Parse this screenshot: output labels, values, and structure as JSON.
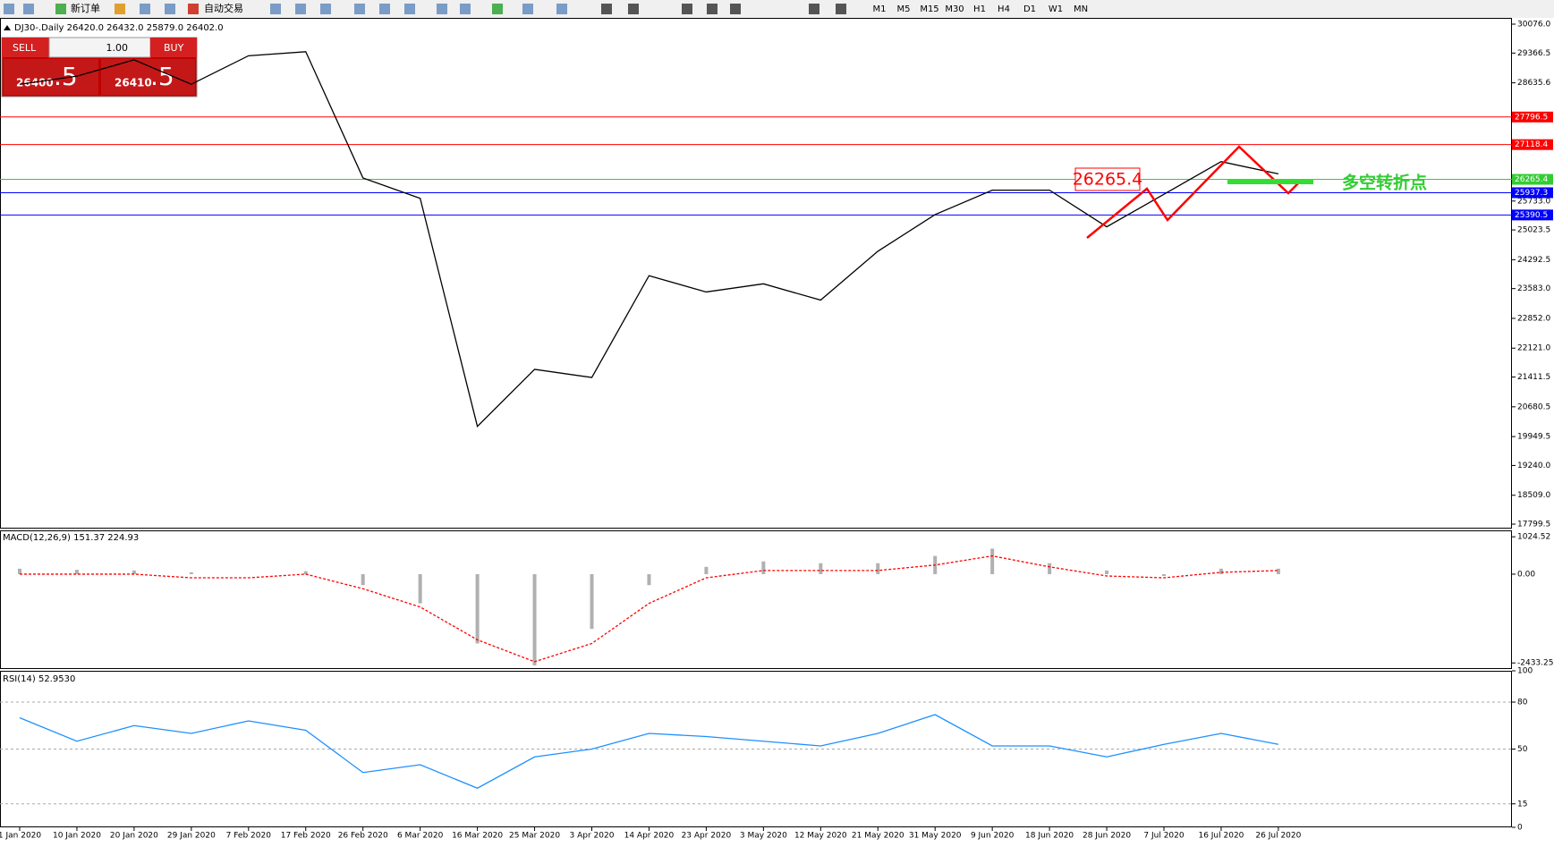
{
  "toolbar": {
    "new_order": "新订单",
    "auto_trading": "自动交易",
    "timeframes": [
      "M1",
      "M5",
      "M15",
      "M30",
      "H1",
      "H4",
      "D1",
      "W1",
      "MN"
    ]
  },
  "trade_panel": {
    "sell": "SELL",
    "buy": "BUY",
    "lots": "1.00",
    "sell_price": "26400",
    "sell_pips": ".5",
    "buy_price": "26410",
    "buy_pips": ".5"
  },
  "chart_data": [
    {
      "type": "line",
      "title": "DJ30-.Daily 26420.0 26432.0 25879.0 26402.0",
      "x": [
        "1 Jan 2020",
        "10 Jan 2020",
        "20 Jan 2020",
        "29 Jan 2020",
        "7 Feb 2020",
        "17 Feb 2020",
        "26 Feb 2020",
        "6 Mar 2020",
        "16 Mar 2020",
        "25 Mar 2020",
        "3 Apr 2020",
        "14 Apr 2020",
        "23 Apr 2020",
        "3 May 2020",
        "12 May 2020",
        "21 May 2020",
        "31 May 2020",
        "9 Jun 2020",
        "18 Jun 2020",
        "28 Jun 2020",
        "7 Jul 2020",
        "16 Jul 2020",
        "26 Jul 2020"
      ],
      "values": [
        28600,
        28800,
        29200,
        28600,
        29300,
        29400,
        26300,
        25800,
        20200,
        21600,
        21400,
        23900,
        23500,
        23700,
        23300,
        24500,
        25400,
        26000,
        26000,
        25100,
        25900,
        26700,
        26400
      ],
      "color": "#000000",
      "ylim": [
        17712,
        30230
      ],
      "yticks": [
        {
          "value": 30076,
          "label": "30076.0"
        },
        {
          "value": 29366.5,
          "label": "29366.5"
        },
        {
          "value": 28635.6,
          "label": "28635.6"
        },
        {
          "value": 25733,
          "label": "25733.0"
        },
        {
          "value": 25023.5,
          "label": "25023.5"
        },
        {
          "value": 24292.5,
          "label": "24292.5"
        },
        {
          "value": 23583,
          "label": "23583.0"
        },
        {
          "value": 22852,
          "label": "22852.0"
        },
        {
          "value": 22121,
          "label": "22121.0"
        },
        {
          "value": 21411.5,
          "label": "21411.5"
        },
        {
          "value": 20680.5,
          "label": "20680.5"
        },
        {
          "value": 19949.5,
          "label": "19949.5"
        },
        {
          "value": 19240,
          "label": "19240.0"
        },
        {
          "value": 18509,
          "label": "18509.0"
        },
        {
          "value": 17799.5,
          "label": "17799.5"
        }
      ],
      "price_lines": [
        {
          "value": 27796.5,
          "color": "#ff0000"
        },
        {
          "value": 27118.4,
          "color": "#ff0000"
        },
        {
          "value": 26265.4,
          "color": "#33cc33"
        },
        {
          "value": 25937.3,
          "color": "#0000ff"
        },
        {
          "value": 25390.5,
          "color": "#0000ff"
        }
      ],
      "annotations": [
        "26265.4",
        "多空转折点"
      ]
    },
    {
      "type": "bar",
      "title": "MACD(12,26,9) 151.37 224.93",
      "values": [
        150,
        120,
        100,
        50,
        0,
        80,
        -300,
        -800,
        -1900,
        -2500,
        -1500,
        -300,
        200,
        350,
        300,
        300,
        500,
        700,
        300,
        100,
        -50,
        150,
        150
      ],
      "signal": [
        0,
        0,
        0,
        -100,
        -100,
        0,
        -400,
        -900,
        -1800,
        -2400,
        -1900,
        -800,
        -100,
        100,
        100,
        100,
        250,
        500,
        200,
        -50,
        -100,
        50,
        100
      ],
      "color": "#b0b0b0",
      "signal_color": "#ff0000",
      "ylim": [
        -2600,
        1200
      ],
      "yticks": [
        1024.52,
        {
          "value": 0,
          "label": "0.00"
        },
        -2433.25
      ]
    },
    {
      "type": "line",
      "title": "RSI(14) 52.9530",
      "values": [
        70,
        55,
        65,
        60,
        68,
        62,
        35,
        40,
        25,
        45,
        50,
        60,
        58,
        55,
        52,
        60,
        72,
        52,
        52,
        45,
        53,
        60,
        53
      ],
      "color": "#1e90ff",
      "ylim": [
        0,
        100
      ],
      "yticks": [
        100,
        80,
        50,
        15,
        0
      ],
      "grid": true
    }
  ]
}
